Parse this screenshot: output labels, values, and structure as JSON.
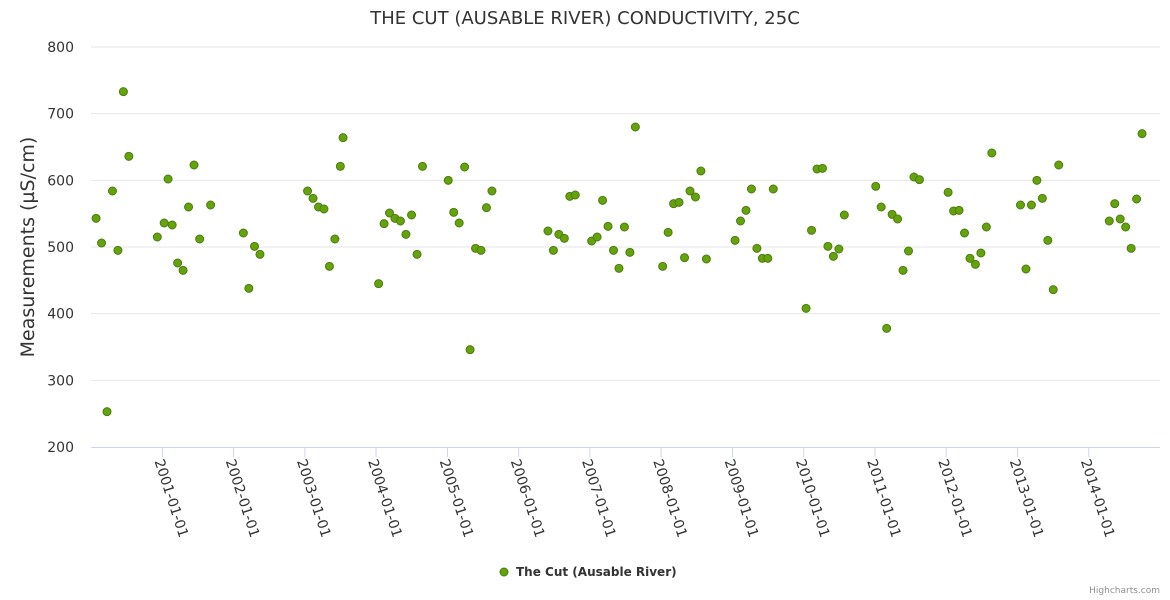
{
  "chart_data": {
    "type": "scatter",
    "title": "THE CUT (AUSABLE RIVER) CONDUCTIVITY, 25C",
    "xlabel": "",
    "ylabel": "Measurements (µS/cm)",
    "x_type": "date",
    "xlim": [
      "2000-01-01",
      "2015-01-01"
    ],
    "ylim": [
      200,
      800
    ],
    "yticks": [
      200,
      300,
      400,
      500,
      600,
      700,
      800
    ],
    "xticks": [
      "2001-01-01",
      "2002-01-01",
      "2003-01-01",
      "2004-01-01",
      "2005-01-01",
      "2006-01-01",
      "2007-01-01",
      "2008-01-01",
      "2009-01-01",
      "2010-01-01",
      "2011-01-01",
      "2012-01-01",
      "2013-01-01",
      "2014-01-01"
    ],
    "grid": true,
    "legend_position": "bottom-center",
    "marker_color": "#65a30d",
    "marker_edge_color": "#4d7c0f",
    "series": [
      {
        "name": "The Cut (Ausable River)",
        "points": [
          [
            "2000-01-27",
            543
          ],
          [
            "2000-02-24",
            506
          ],
          [
            "2000-03-23",
            253
          ],
          [
            "2000-04-20",
            584
          ],
          [
            "2000-05-18",
            495
          ],
          [
            "2000-06-15",
            733
          ],
          [
            "2000-07-13",
            636
          ],
          [
            "2000-12-06",
            515
          ],
          [
            "2001-01-10",
            536
          ],
          [
            "2001-01-30",
            602
          ],
          [
            "2001-02-20",
            533
          ],
          [
            "2001-03-20",
            476
          ],
          [
            "2001-04-17",
            465
          ],
          [
            "2001-05-15",
            560
          ],
          [
            "2001-06-12",
            623
          ],
          [
            "2001-07-11",
            512
          ],
          [
            "2001-09-05",
            563
          ],
          [
            "2002-02-20",
            521
          ],
          [
            "2002-03-20",
            438
          ],
          [
            "2002-04-18",
            501
          ],
          [
            "2002-05-16",
            489
          ],
          [
            "2003-01-15",
            584
          ],
          [
            "2003-02-12",
            573
          ],
          [
            "2003-03-12",
            560
          ],
          [
            "2003-04-09",
            557
          ],
          [
            "2003-05-07",
            471
          ],
          [
            "2003-06-04",
            512
          ],
          [
            "2003-07-02",
            621
          ],
          [
            "2003-07-16",
            664
          ],
          [
            "2004-01-14",
            445
          ],
          [
            "2004-02-11",
            535
          ],
          [
            "2004-03-10",
            551
          ],
          [
            "2004-04-07",
            543
          ],
          [
            "2004-05-05",
            539
          ],
          [
            "2004-06-02",
            519
          ],
          [
            "2004-07-01",
            548
          ],
          [
            "2004-07-29",
            489
          ],
          [
            "2004-08-26",
            621
          ],
          [
            "2005-01-05",
            600
          ],
          [
            "2005-02-02",
            552
          ],
          [
            "2005-03-02",
            536
          ],
          [
            "2005-03-30",
            620
          ],
          [
            "2005-04-27",
            346
          ],
          [
            "2005-05-25",
            498
          ],
          [
            "2005-06-22",
            495
          ],
          [
            "2005-07-20",
            559
          ],
          [
            "2005-08-17",
            584
          ],
          [
            "2006-05-31",
            524
          ],
          [
            "2006-06-28",
            495
          ],
          [
            "2006-07-26",
            519
          ],
          [
            "2006-08-23",
            513
          ],
          [
            "2006-09-20",
            576
          ],
          [
            "2006-10-18",
            578
          ],
          [
            "2007-01-10",
            509
          ],
          [
            "2007-02-07",
            515
          ],
          [
            "2007-03-07",
            570
          ],
          [
            "2007-04-04",
            531
          ],
          [
            "2007-05-02",
            495
          ],
          [
            "2007-05-30",
            468
          ],
          [
            "2007-06-27",
            530
          ],
          [
            "2007-07-25",
            492
          ],
          [
            "2007-08-22",
            680
          ],
          [
            "2008-01-09",
            471
          ],
          [
            "2008-02-06",
            522
          ],
          [
            "2008-03-05",
            565
          ],
          [
            "2008-04-02",
            567
          ],
          [
            "2008-04-30",
            484
          ],
          [
            "2008-05-28",
            584
          ],
          [
            "2008-06-25",
            575
          ],
          [
            "2008-07-23",
            614
          ],
          [
            "2008-08-20",
            482
          ],
          [
            "2009-01-14",
            510
          ],
          [
            "2009-02-11",
            539
          ],
          [
            "2009-03-11",
            555
          ],
          [
            "2009-04-08",
            587
          ],
          [
            "2009-05-06",
            498
          ],
          [
            "2009-06-03",
            483
          ],
          [
            "2009-07-01",
            483
          ],
          [
            "2009-07-29",
            587
          ],
          [
            "2010-01-13",
            408
          ],
          [
            "2010-02-10",
            525
          ],
          [
            "2010-03-10",
            617
          ],
          [
            "2010-04-07",
            618
          ],
          [
            "2010-05-05",
            501
          ],
          [
            "2010-06-02",
            486
          ],
          [
            "2010-06-30",
            497
          ],
          [
            "2010-07-28",
            548
          ],
          [
            "2011-01-05",
            591
          ],
          [
            "2011-02-02",
            560
          ],
          [
            "2011-03-02",
            378
          ],
          [
            "2011-03-30",
            549
          ],
          [
            "2011-04-27",
            542
          ],
          [
            "2011-05-25",
            465
          ],
          [
            "2011-06-22",
            494
          ],
          [
            "2011-07-20",
            605
          ],
          [
            "2011-08-17",
            601
          ],
          [
            "2012-01-11",
            582
          ],
          [
            "2012-02-08",
            554
          ],
          [
            "2012-03-07",
            555
          ],
          [
            "2012-04-04",
            521
          ],
          [
            "2012-05-02",
            483
          ],
          [
            "2012-05-30",
            474
          ],
          [
            "2012-06-27",
            491
          ],
          [
            "2012-07-25",
            530
          ],
          [
            "2012-08-22",
            641
          ],
          [
            "2013-01-16",
            563
          ],
          [
            "2013-02-13",
            467
          ],
          [
            "2013-03-13",
            563
          ],
          [
            "2013-04-10",
            600
          ],
          [
            "2013-05-08",
            573
          ],
          [
            "2013-06-05",
            510
          ],
          [
            "2013-07-03",
            436
          ],
          [
            "2013-07-31",
            623
          ],
          [
            "2014-04-16",
            539
          ],
          [
            "2014-05-14",
            565
          ],
          [
            "2014-06-11",
            542
          ],
          [
            "2014-07-09",
            530
          ],
          [
            "2014-08-06",
            498
          ],
          [
            "2014-09-03",
            572
          ],
          [
            "2014-10-01",
            670
          ]
        ]
      }
    ]
  },
  "credits": "Highcharts.com"
}
